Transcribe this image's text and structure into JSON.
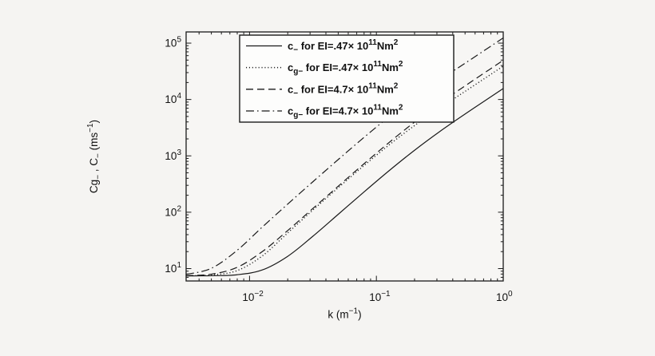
{
  "colors": {
    "page_bg": "#f5f4f2",
    "plot_bg": "#f7f6f4",
    "legend_bg": "#fdfdfc",
    "stroke": "#1a1a1a",
    "text": "#111111"
  },
  "chart_data": {
    "type": "line",
    "title": "",
    "x_scale": "log",
    "y_scale": "log",
    "xlim": [
      0.0031623,
      1.0
    ],
    "ylim": [
      6.03,
      158000
    ],
    "x_major_ticks": [
      0.01,
      0.1,
      1
    ],
    "y_major_ticks": [
      10,
      100,
      1000,
      10000,
      100000
    ],
    "grid": false,
    "legend_position": "top-left",
    "xlabel_runs": [
      [
        "n",
        "k (m"
      ],
      [
        "sup",
        "−1"
      ],
      [
        "n",
        ")"
      ]
    ],
    "ylabel_runs": [
      [
        "n",
        "Cg"
      ],
      [
        "sub",
        "−"
      ],
      [
        "n",
        " , C"
      ],
      [
        "sub",
        "−"
      ],
      [
        "n",
        " (ms"
      ],
      [
        "sup",
        "−1"
      ],
      [
        "n",
        ")"
      ]
    ],
    "k": [
      0.0031623,
      0.0050119,
      0.0079433,
      0.012589,
      0.019953,
      0.031623,
      0.050119,
      0.079433,
      0.12589,
      0.19953,
      0.31623,
      0.50119,
      0.79433,
      1.0
    ],
    "series": [
      {
        "id": "c-ei-047e11",
        "style": "solid",
        "legend_runs": [
          [
            "n",
            "c"
          ],
          [
            "sub",
            "−"
          ],
          [
            "n",
            " for EI=.47× 10"
          ],
          [
            "sup",
            "11"
          ],
          [
            "n",
            "Nm"
          ],
          [
            "sup",
            "2"
          ]
        ],
        "values": [
          7.42,
          7.47,
          7.77,
          9.45,
          16.47,
          37.58,
          92.14,
          226.6,
          545.0,
          1252.9,
          2704.0,
          5533.3,
          11080,
          15652
        ]
      },
      {
        "id": "cg-ei-047e11",
        "style": "dotted",
        "legend_runs": [
          [
            "n",
            "c"
          ],
          [
            "sub",
            "g−"
          ],
          [
            "n",
            " for EI=.47× 10"
          ],
          [
            "sup",
            "11"
          ],
          [
            "n",
            "Nm"
          ],
          [
            "sup",
            "2"
          ]
        ],
        "values": [
          7.46,
          7.7,
          9.17,
          16.72,
          42.7,
          109.5,
          272.9,
          665.6,
          1561.8,
          3435.4,
          7037.5,
          13947,
          27713,
          39133
        ]
      },
      {
        "id": "c-ei-47e11",
        "style": "dashed",
        "legend_runs": [
          [
            "n",
            "c"
          ],
          [
            "sub",
            "−"
          ],
          [
            "n",
            " for EI=4.7× 10"
          ],
          [
            "sup",
            "11"
          ],
          [
            "n",
            "Nm"
          ],
          [
            "sup",
            "2"
          ]
        ],
        "values": [
          7.5,
          7.97,
          10.46,
          19.97,
          47.12,
          116.8,
          290.5,
          716.3,
          1723.3,
          3962.0,
          8550.7,
          17497,
          35037,
          49498
        ]
      },
      {
        "id": "cg-ei-47e11",
        "style": "dashdot",
        "legend_runs": [
          [
            "n",
            "c"
          ],
          [
            "sub",
            "g−"
          ],
          [
            "n",
            " for EI=4.7× 10"
          ],
          [
            "sup",
            "11"
          ],
          [
            "n",
            "Nm"
          ],
          [
            "sup",
            "2"
          ]
        ],
        "values": [
          7.87,
          10.14,
          20.89,
          54.4,
          138.8,
          348.1,
          863.9,
          2105.4,
          4939.4,
          10864,
          22254,
          44107,
          87635,
          123747
        ]
      }
    ]
  }
}
